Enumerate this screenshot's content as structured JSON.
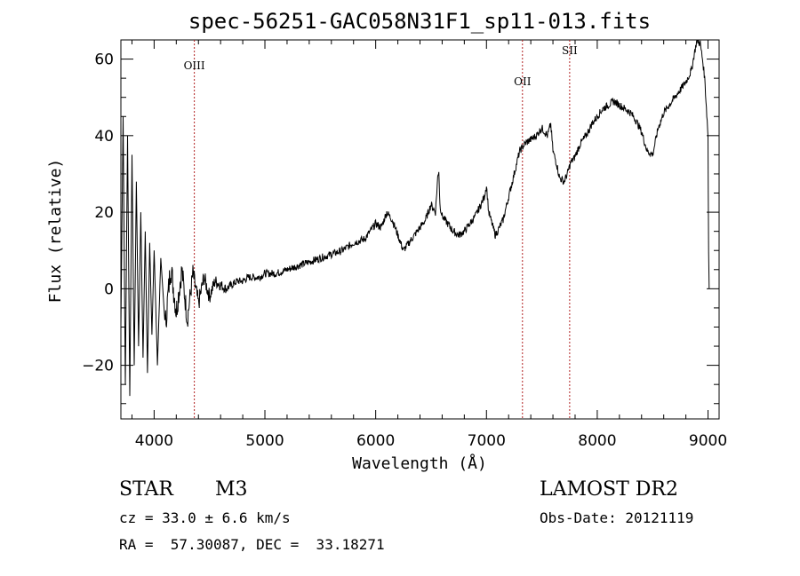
{
  "chart_data": {
    "type": "line",
    "title": "spec-56251-GAC058N31F1_sp11-013.fits",
    "xlabel": "Wavelength (Å)",
    "ylabel": "Flux (relative)",
    "xlim": [
      3700,
      9100
    ],
    "ylim": [
      -34,
      65
    ],
    "x_ticks": [
      4000,
      5000,
      6000,
      7000,
      8000,
      9000
    ],
    "y_ticks": [
      -20,
      0,
      20,
      40,
      60
    ],
    "series": [
      {
        "x": [
          3700,
          3720,
          3740,
          3760,
          3780,
          3800,
          3820,
          3840,
          3860,
          3880,
          3900,
          3920,
          3940,
          3960,
          3980,
          4000,
          4030,
          4060,
          4100,
          4150,
          4200,
          4250,
          4300,
          4350,
          4400,
          4450,
          4500,
          4550,
          4600,
          4650,
          4700,
          4750,
          4800,
          4850,
          4900,
          4950,
          5000,
          5100,
          5200,
          5300,
          5400,
          5500,
          5600,
          5700,
          5800,
          5900,
          6000,
          6050,
          6100,
          6150,
          6200,
          6250,
          6300,
          6350,
          6400,
          6450,
          6500,
          6540,
          6560,
          6570,
          6580,
          6600,
          6650,
          6700,
          6750,
          6800,
          6850,
          6900,
          6950,
          6980,
          7000,
          7020,
          7050,
          7080,
          7100,
          7150,
          7200,
          7250,
          7300,
          7350,
          7400,
          7450,
          7500,
          7550,
          7580,
          7600,
          7630,
          7660,
          7700,
          7730,
          7760,
          7790,
          7820,
          7850,
          7900,
          7950,
          8000,
          8050,
          8100,
          8150,
          8200,
          8250,
          8300,
          8350,
          8400,
          8450,
          8500,
          8550,
          8600,
          8650,
          8700,
          8750,
          8800,
          8850,
          8880,
          8900,
          8930,
          8950,
          8970,
          9000,
          9005,
          9010
        ],
        "y": [
          -10,
          45,
          -25,
          40,
          -28,
          35,
          -20,
          28,
          -15,
          20,
          -18,
          15,
          -22,
          12,
          -12,
          10,
          -20,
          8,
          -10,
          6,
          -6,
          5,
          -8,
          4,
          -4,
          3,
          -2,
          2,
          1,
          0,
          1,
          2,
          2,
          3,
          3,
          3,
          4,
          4,
          5,
          6,
          7,
          8,
          9,
          10,
          12,
          13,
          17,
          16,
          20,
          18,
          14,
          10,
          12,
          14,
          16,
          18,
          22,
          20,
          29,
          31,
          22,
          19,
          17,
          15,
          14,
          15,
          17,
          19,
          22,
          24,
          27,
          20,
          17,
          14,
          15,
          18,
          24,
          30,
          36,
          38,
          39,
          40,
          42,
          40,
          43,
          36,
          33,
          29,
          28,
          30,
          33,
          34,
          36,
          38,
          40,
          43,
          45,
          47,
          48,
          49,
          48,
          47,
          46,
          44,
          41,
          36,
          35,
          42,
          46,
          48,
          50,
          52,
          54,
          57,
          62,
          65,
          64,
          60,
          55,
          40,
          10,
          0
        ]
      }
    ],
    "reference_lines": [
      {
        "label": "OIII",
        "x": 4363
      },
      {
        "label": "OII",
        "x": 7325
      },
      {
        "label": "SII",
        "x": 7751
      }
    ],
    "reference_line_color": "#b22222"
  },
  "info": {
    "object_class": "STAR",
    "subclass": "M3",
    "survey": "LAMOST DR2",
    "cz": "cz = 33.0 ± 6.6 km/s",
    "obs_date": "Obs-Date: 20121119",
    "coords": "RA =  57.30087, DEC =  33.18271"
  }
}
